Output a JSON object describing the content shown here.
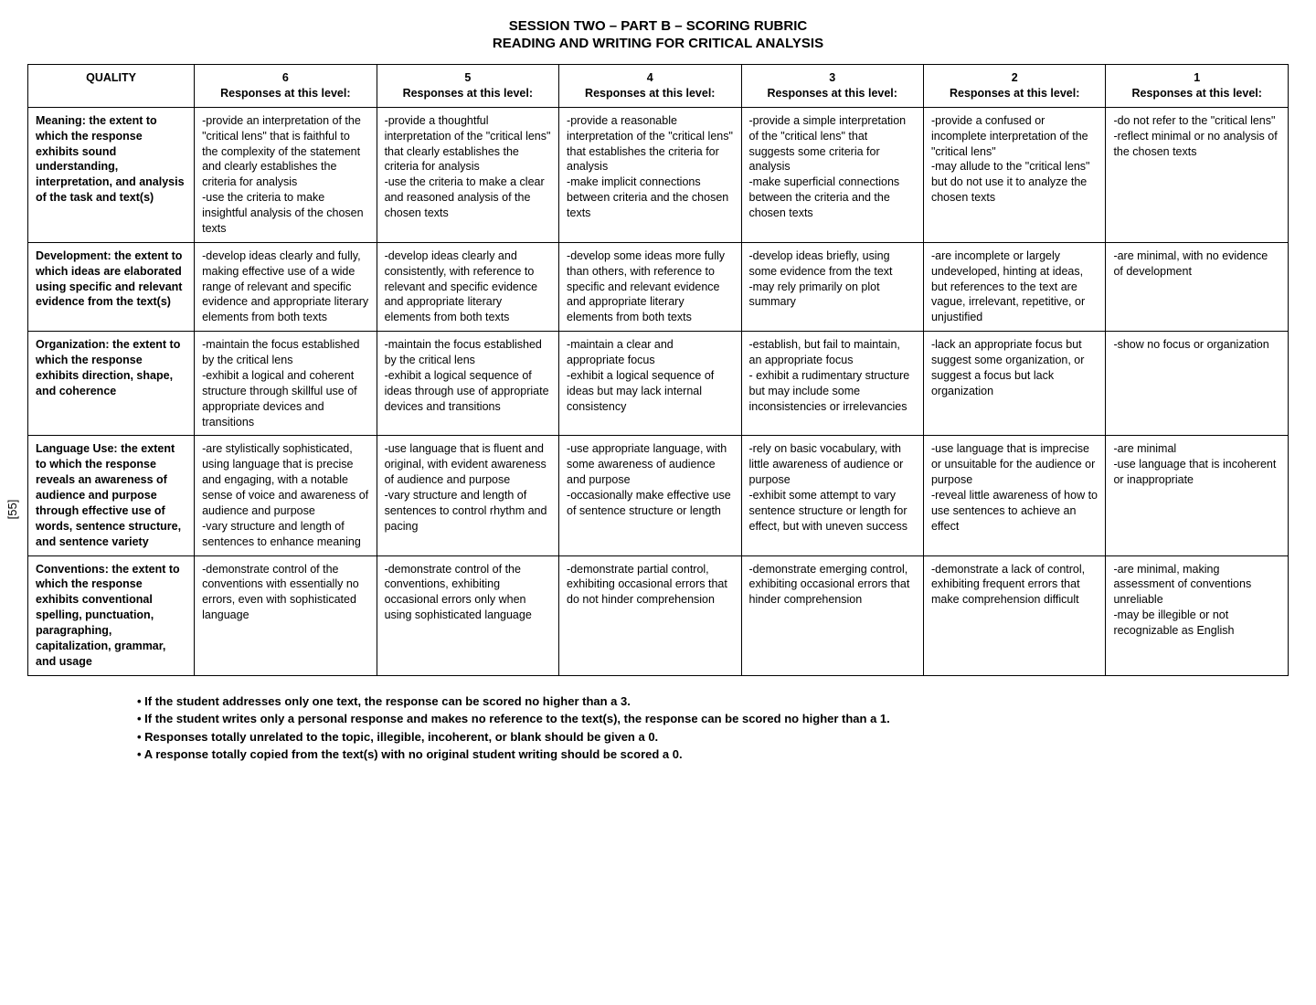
{
  "title_line1": "SESSION TWO – PART B – SCORING RUBRIC",
  "title_line2": "READING AND WRITING FOR CRITICAL ANALYSIS",
  "page_number": "[55]",
  "quality_header": "QUALITY",
  "level_header_prefix": "Responses at this level:",
  "levels": [
    "6",
    "5",
    "4",
    "3",
    "2",
    "1"
  ],
  "rows": [
    {
      "quality": "Meaning: the extent to which the response exhibits sound understanding, interpretation, and analysis of the task and text(s)",
      "cells": [
        "-provide an interpretation of the \"critical lens\" that is faithful to the complexity of the statement and clearly establishes the criteria for analysis\n-use the criteria to make insightful analysis of the chosen texts",
        "-provide a thoughtful interpretation of the \"critical lens\" that clearly establishes the criteria for analysis\n-use the criteria to make a clear and reasoned analysis of the chosen texts",
        "-provide a reasonable interpretation of the \"critical lens\" that establishes the criteria for analysis\n-make implicit connections between criteria and the chosen texts",
        "-provide a simple interpretation of the \"critical lens\" that suggests some criteria for analysis\n-make superficial connections between the criteria and the chosen texts",
        "-provide a confused or incomplete interpretation of the \"critical lens\"\n-may allude to the \"critical lens\" but do not use it to analyze the chosen texts",
        "-do not refer to the \"critical lens\"\n-reflect minimal or no analysis of the chosen texts"
      ]
    },
    {
      "quality": "Development: the extent to which ideas are elaborated using specific and relevant evidence from the text(s)",
      "cells": [
        "-develop ideas clearly and fully, making effective use of a wide range of relevant and specific evidence and appropriate literary elements from both texts",
        "-develop ideas clearly and consistently, with reference to relevant and specific evidence and appropriate literary elements from both texts",
        "-develop some ideas more fully than others, with reference to specific and relevant evidence and appropriate literary elements from both texts",
        "-develop ideas briefly, using some evidence from the text\n-may rely primarily on plot summary",
        "-are incomplete or largely undeveloped, hinting at ideas, but references to the text are vague, irrelevant, repetitive, or unjustified",
        "-are minimal, with no evidence of development"
      ]
    },
    {
      "quality": "Organization: the extent to which the response exhibits direction, shape, and coherence",
      "cells": [
        "-maintain the focus established by the critical lens\n-exhibit a logical and coherent structure through skillful use of appropriate devices and transitions",
        "-maintain the focus established by the critical lens\n-exhibit a logical sequence of ideas through use of appropriate devices and transitions",
        "-maintain a clear and appropriate focus\n-exhibit a logical sequence of ideas but may lack internal consistency",
        "-establish, but fail to maintain, an appropriate focus\n- exhibit a rudimentary structure  but may include some inconsistencies or irrelevancies",
        "-lack an appropriate focus but suggest some organization, or suggest a focus but lack organization",
        "-show no focus or organization"
      ]
    },
    {
      "quality": "Language Use: the extent to which the response reveals an awareness of audience and purpose through effective use of words, sentence structure, and sentence variety",
      "cells": [
        "-are stylistically sophisticated, using language that is precise and engaging, with a notable sense of voice and awareness of audience and purpose\n-vary structure and length of sentences to enhance meaning",
        "-use language that is fluent and original, with evident awareness of audience and purpose\n-vary structure and length of sentences to control rhythm and pacing",
        "-use appropriate language, with some awareness of audience and purpose\n-occasionally make effective use of sentence structure or length",
        "-rely on basic vocabulary, with little awareness of audience or purpose\n-exhibit some attempt to vary sentence structure or length for effect, but with uneven success",
        "-use language that is imprecise or unsuitable for the audience or purpose\n-reveal little awareness of how to use sentences to achieve an effect",
        "-are minimal\n-use language that is incoherent or inappropriate"
      ]
    },
    {
      "quality": "Conventions: the extent to which the response exhibits conventional spelling, punctuation, paragraphing, capitalization, grammar, and usage",
      "cells": [
        "-demonstrate control of the conventions with essentially no errors, even with sophisticated language",
        "-demonstrate control of the conventions, exhibiting occasional errors only when using sophisticated language",
        "-demonstrate partial control, exhibiting occasional errors that do not hinder comprehension",
        "-demonstrate emerging control, exhibiting occasional errors that hinder comprehension",
        "-demonstrate a lack of control, exhibiting frequent errors that make comprehension difficult",
        "-are minimal, making assessment of conventions unreliable\n-may be illegible or not recognizable as English"
      ]
    }
  ],
  "notes": [
    "If the student addresses only one text, the response can be scored no higher than a 3.",
    "If the student writes only a personal response and makes no reference to the text(s), the response can be scored no higher than a 1.",
    "Responses totally unrelated to the topic, illegible, incoherent, or blank should be given a 0.",
    "A response totally copied from the text(s) with no original student writing should be scored a 0."
  ]
}
